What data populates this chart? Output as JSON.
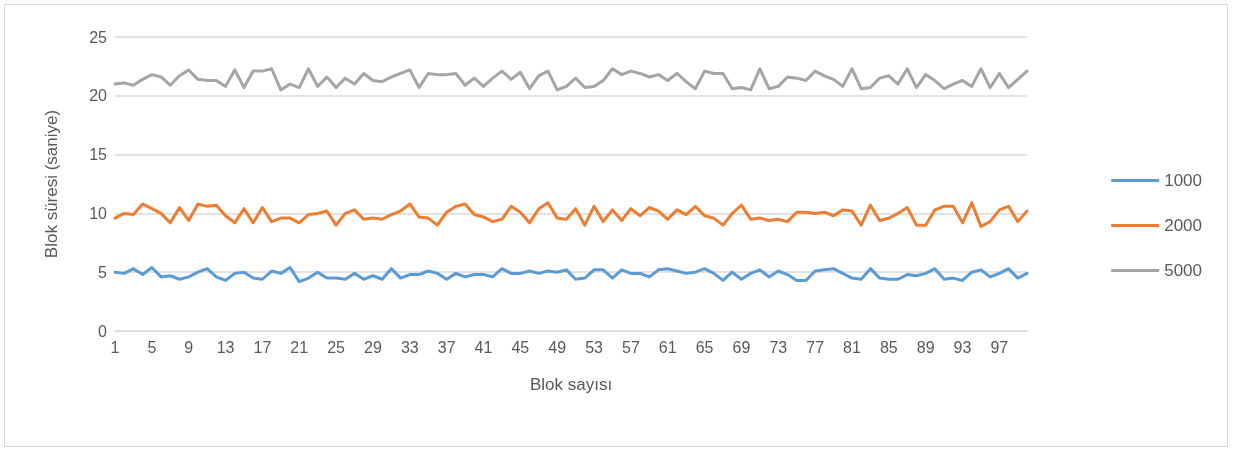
{
  "chart_data": {
    "type": "line",
    "xlabel": "Blok sayısı",
    "ylabel": "Blok süresi (saniye)",
    "categories": [
      "1",
      null,
      null,
      null,
      "5",
      null,
      null,
      null,
      "9",
      null,
      null,
      null,
      "13",
      null,
      null,
      null,
      "17",
      null,
      null,
      null,
      "21",
      null,
      null,
      null,
      "25",
      null,
      null,
      null,
      "29",
      null,
      null,
      null,
      "33",
      null,
      null,
      null,
      "37",
      null,
      null,
      null,
      "41",
      null,
      null,
      null,
      "45",
      null,
      null,
      null,
      "49",
      null,
      null,
      null,
      "53",
      null,
      null,
      null,
      "57",
      null,
      null,
      null,
      "61",
      null,
      null,
      null,
      "65",
      null,
      null,
      null,
      "69",
      null,
      null,
      null,
      "73",
      null,
      null,
      null,
      "77",
      null,
      null,
      null,
      "81",
      null,
      null,
      null,
      "85",
      null,
      null,
      null,
      "89",
      null,
      null,
      null,
      "93",
      null,
      null,
      null,
      "97",
      null,
      null,
      null
    ],
    "series": [
      {
        "name": "1000",
        "color": "#5b9bd5",
        "values": [
          5.0,
          4.9,
          5.3,
          4.8,
          5.4,
          4.6,
          4.7,
          4.4,
          4.6,
          5.0,
          5.3,
          4.6,
          4.3,
          4.9,
          5.0,
          4.5,
          4.4,
          5.1,
          4.9,
          5.4,
          4.2,
          4.5,
          5.0,
          4.5,
          4.5,
          4.4,
          4.9,
          4.4,
          4.7,
          4.4,
          5.3,
          4.5,
          4.8,
          4.8,
          5.1,
          4.9,
          4.4,
          4.9,
          4.6,
          4.8,
          4.8,
          4.6,
          5.3,
          4.9,
          4.9,
          5.1,
          4.9,
          5.1,
          5.0,
          5.2,
          4.4,
          4.5,
          5.2,
          5.2,
          4.5,
          5.2,
          4.9,
          4.9,
          4.6,
          5.2,
          5.3,
          5.1,
          4.9,
          5.0,
          5.3,
          4.9,
          4.3,
          5.0,
          4.4,
          4.9,
          5.2,
          4.6,
          5.1,
          4.8,
          4.3,
          4.3,
          5.1,
          5.2,
          5.3,
          4.9,
          4.5,
          4.4,
          5.3,
          4.5,
          4.4,
          4.4,
          4.8,
          4.7,
          4.9,
          5.3,
          4.4,
          4.5,
          4.3,
          5.0,
          5.2,
          4.6,
          4.9,
          5.3,
          4.5,
          4.9
        ]
      },
      {
        "name": "2000",
        "color": "#ed7d31",
        "values": [
          9.6,
          10.0,
          9.9,
          10.8,
          10.4,
          10.0,
          9.2,
          10.5,
          9.4,
          10.8,
          10.6,
          10.7,
          9.8,
          9.2,
          10.4,
          9.2,
          10.5,
          9.3,
          9.6,
          9.6,
          9.2,
          9.9,
          10.0,
          10.2,
          9.0,
          10.0,
          10.3,
          9.5,
          9.6,
          9.5,
          9.9,
          10.2,
          10.8,
          9.7,
          9.6,
          9.0,
          10.1,
          10.6,
          10.8,
          9.9,
          9.7,
          9.3,
          9.5,
          10.6,
          10.1,
          9.2,
          10.4,
          10.9,
          9.6,
          9.5,
          10.4,
          9.0,
          10.6,
          9.3,
          10.3,
          9.4,
          10.4,
          9.8,
          10.5,
          10.2,
          9.5,
          10.3,
          9.9,
          10.6,
          9.8,
          9.6,
          9.0,
          10.0,
          10.7,
          9.5,
          9.6,
          9.4,
          9.5,
          9.3,
          10.1,
          10.1,
          10.0,
          10.1,
          9.8,
          10.3,
          10.2,
          9.0,
          10.7,
          9.4,
          9.6,
          10.0,
          10.5,
          9.0,
          9.0,
          10.3,
          10.6,
          10.6,
          9.2,
          10.9,
          8.9,
          9.3,
          10.3,
          10.6,
          9.3,
          10.2
        ]
      },
      {
        "name": "5000",
        "color": "#a5a5a5",
        "values": [
          21.0,
          21.1,
          20.9,
          21.4,
          21.8,
          21.6,
          20.9,
          21.7,
          22.2,
          21.4,
          21.3,
          21.3,
          20.8,
          22.2,
          20.7,
          22.1,
          22.1,
          22.3,
          20.5,
          21.0,
          20.7,
          22.3,
          20.8,
          21.6,
          20.7,
          21.5,
          21.0,
          21.9,
          21.3,
          21.2,
          21.6,
          21.9,
          22.2,
          20.7,
          21.9,
          21.8,
          21.8,
          21.9,
          20.9,
          21.5,
          20.8,
          21.5,
          22.1,
          21.4,
          22.0,
          20.6,
          21.7,
          22.1,
          20.5,
          20.8,
          21.5,
          20.7,
          20.8,
          21.3,
          22.3,
          21.8,
          22.1,
          21.9,
          21.6,
          21.8,
          21.3,
          21.9,
          21.2,
          20.6,
          22.1,
          21.9,
          21.9,
          20.6,
          20.7,
          20.5,
          22.3,
          20.6,
          20.8,
          21.6,
          21.5,
          21.3,
          22.1,
          21.7,
          21.4,
          20.8,
          22.3,
          20.6,
          20.7,
          21.5,
          21.7,
          21.0,
          22.3,
          20.7,
          21.8,
          21.3,
          20.6,
          21.0,
          21.3,
          20.8,
          22.3,
          20.7,
          21.9,
          20.7,
          21.4,
          22.1
        ]
      }
    ],
    "ylim": [
      0,
      25
    ],
    "yticks": [
      0,
      5,
      10,
      15,
      20,
      25
    ],
    "grid": "y",
    "legend": "right",
    "marker": "none",
    "line_style": "solid"
  }
}
